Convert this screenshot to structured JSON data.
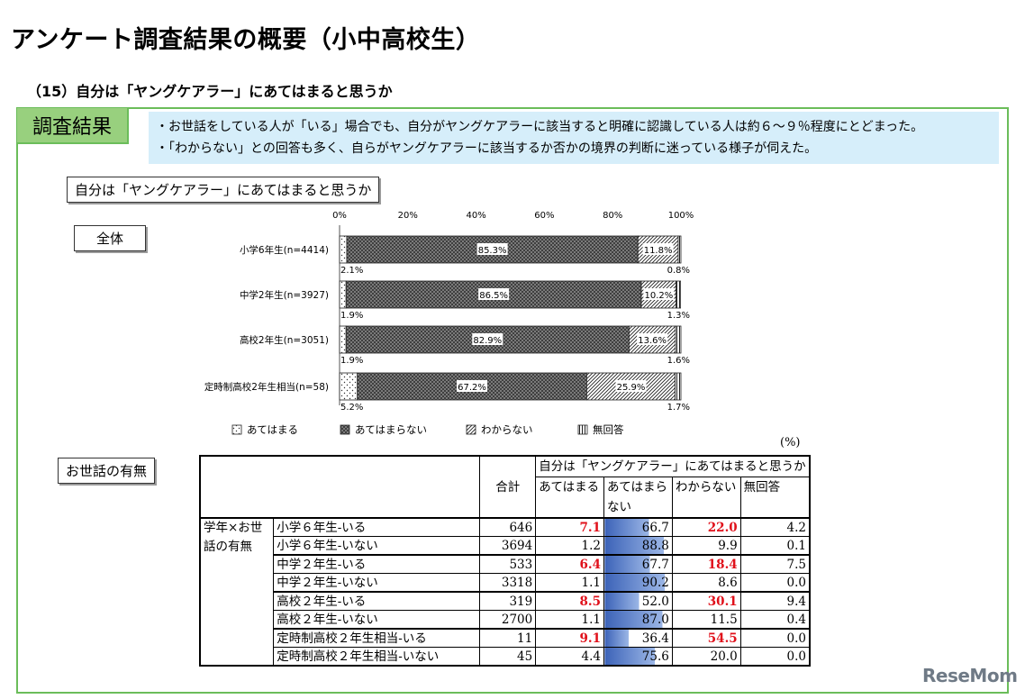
{
  "page": {
    "title": "アンケート調査結果の概要（小中高校生）",
    "section_heading": "（15）自分は「ヤングケアラー」にあてはまると思うか",
    "result_badge": "調査結果",
    "summary": [
      "・お世話をしている人が「いる」場合でも、自分がヤングケアラーに該当すると明確に認識している人は約６～９％程度にとどまった。",
      "・「わからない」との回答も多く、自らがヤングケアラーに該当するか否かの境界の判断に迷っている様子が伺えた。"
    ],
    "question_label": "自分は「ヤングケアラー」にあてはまると思うか",
    "overall_label": "全体",
    "care_label": "お世話の有無",
    "logo": "ReseMom"
  },
  "chart_data": [
    {
      "type": "bar",
      "orientation": "horizontal",
      "stacked": true,
      "percent_scale": true,
      "title": "",
      "xlim": [
        0,
        100
      ],
      "x_ticks": [
        "0%",
        "20%",
        "40%",
        "60%",
        "80%",
        "100%"
      ],
      "categories": [
        "小学6年生(n=4414)",
        "中学2年生(n=3927)",
        "高校2年生(n=3051)",
        "定時制高校2年生相当(n=58)"
      ],
      "series": [
        {
          "name": "あてはまる",
          "values": [
            2.1,
            1.9,
            1.9,
            5.2
          ],
          "labels": [
            "2.1%",
            "1.9%",
            "1.9%",
            "5.2%"
          ],
          "pattern": "dots"
        },
        {
          "name": "あてはまらない",
          "values": [
            85.3,
            86.5,
            82.9,
            67.2
          ],
          "labels": [
            "85.3%",
            "86.5%",
            "82.9%",
            "67.2%"
          ],
          "pattern": "crosshatch"
        },
        {
          "name": "わからない",
          "values": [
            11.8,
            10.2,
            13.6,
            25.9
          ],
          "labels": [
            "11.8%",
            "10.2%",
            "13.6%",
            "25.9%"
          ],
          "pattern": "diagonal"
        },
        {
          "name": "無回答",
          "values": [
            0.8,
            1.3,
            1.6,
            1.7
          ],
          "labels": [
            "0.8%",
            "1.3%",
            "1.6%",
            "1.7%"
          ],
          "pattern": "vertical"
        }
      ],
      "legend_position": "bottom"
    },
    {
      "type": "table",
      "unit": "(%)",
      "header": {
        "total": "合計",
        "question": "自分は「ヤングケアラー」にあてはまると思うか",
        "columns": [
          "あてはまる",
          "あてはまらない",
          "わからない",
          "無回答"
        ]
      },
      "row_group_label": "学年×お世話の有無",
      "rows": [
        {
          "label": "小学６年生-いる",
          "total": "646",
          "values": [
            "7.1",
            "66.7",
            "22.0",
            "4.2"
          ],
          "highlight": [
            true,
            false,
            true,
            false
          ]
        },
        {
          "label": "小学６年生-いない",
          "total": "3694",
          "values": [
            "1.2",
            "88.8",
            "9.9",
            "0.1"
          ],
          "highlight": [
            false,
            false,
            false,
            false
          ]
        },
        {
          "label": "中学２年生-いる",
          "total": "533",
          "values": [
            "6.4",
            "67.7",
            "18.4",
            "7.5"
          ],
          "highlight": [
            true,
            false,
            true,
            false
          ]
        },
        {
          "label": "中学２年生-いない",
          "total": "3318",
          "values": [
            "1.1",
            "90.2",
            "8.6",
            "0.0"
          ],
          "highlight": [
            false,
            false,
            false,
            false
          ]
        },
        {
          "label": "高校２年生-いる",
          "total": "319",
          "values": [
            "8.5",
            "52.0",
            "30.1",
            "9.4"
          ],
          "highlight": [
            true,
            false,
            true,
            false
          ]
        },
        {
          "label": "高校２年生-いない",
          "total": "2700",
          "values": [
            "1.1",
            "87.0",
            "11.5",
            "0.4"
          ],
          "highlight": [
            false,
            false,
            false,
            false
          ]
        },
        {
          "label": "定時制高校２年生相当-いる",
          "total": "11",
          "values": [
            "9.1",
            "36.4",
            "54.5",
            "0.0"
          ],
          "highlight": [
            true,
            false,
            true,
            false
          ]
        },
        {
          "label": "定時制高校２年生相当-いない",
          "total": "45",
          "values": [
            "4.4",
            "75.6",
            "20.0",
            "0.0"
          ],
          "highlight": [
            false,
            false,
            false,
            false
          ]
        }
      ]
    }
  ]
}
